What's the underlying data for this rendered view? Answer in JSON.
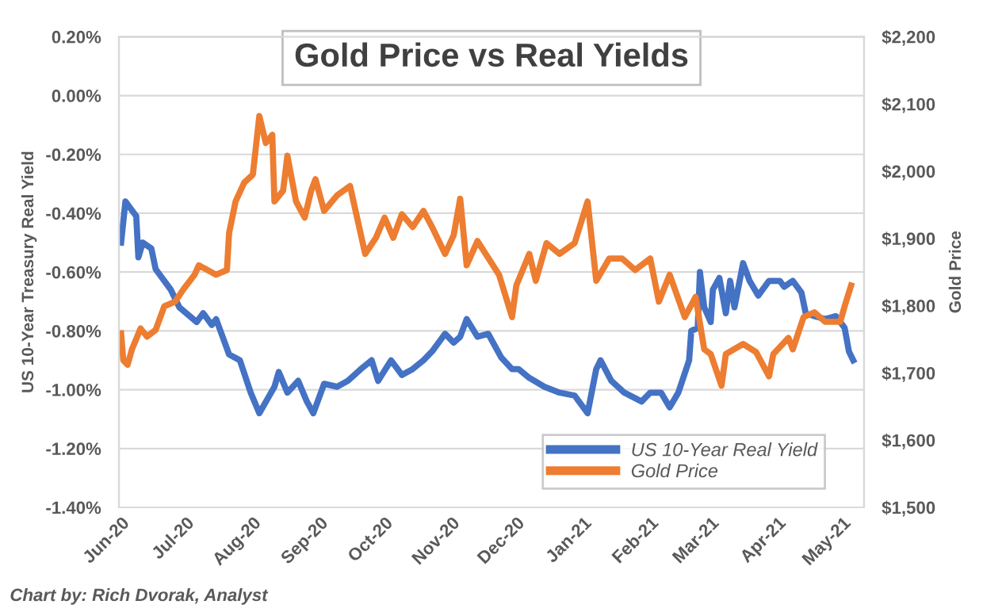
{
  "chart_data": {
    "type": "line",
    "title": "Gold Price vs Real Yields",
    "ylabel": "US 10-Year Treasury Real Yield",
    "y2label": "Gold Price",
    "annotations": [
      "Chart by: Rich Dvorak, Analyst"
    ],
    "series": [
      {
        "name": "US 10-Year Real Yield",
        "color": "#4472c4",
        "axis": "y",
        "x": [
          "2020-06-01",
          "2020-06-03",
          "2020-06-06",
          "2020-06-08",
          "2020-06-09",
          "2020-06-11",
          "2020-06-15",
          "2020-06-17",
          "2020-06-24",
          "2020-06-28",
          "2020-07-06",
          "2020-07-09",
          "2020-07-13",
          "2020-07-15",
          "2020-07-21",
          "2020-07-26",
          "2020-07-31",
          "2020-08-04",
          "2020-08-11",
          "2020-08-13",
          "2020-08-17",
          "2020-08-22",
          "2020-08-26",
          "2020-08-29",
          "2020-09-03",
          "2020-09-09",
          "2020-09-14",
          "2020-09-20",
          "2020-09-25",
          "2020-09-28",
          "2020-10-04",
          "2020-10-09",
          "2020-10-14",
          "2020-10-19",
          "2020-10-23",
          "2020-10-29",
          "2020-11-02",
          "2020-11-05",
          "2020-11-08",
          "2020-11-13",
          "2020-11-18",
          "2020-11-24",
          "2020-11-29",
          "2020-12-02",
          "2020-12-07",
          "2020-12-14",
          "2020-12-21",
          "2020-12-28",
          "2021-01-03",
          "2021-01-07",
          "2021-01-09",
          "2021-01-14",
          "2021-01-20",
          "2021-01-28",
          "2021-02-01",
          "2021-02-06",
          "2021-02-10",
          "2021-02-14",
          "2021-02-19",
          "2021-02-20",
          "2021-02-23",
          "2021-02-24",
          "2021-02-26",
          "2021-03-01",
          "2021-03-02",
          "2021-03-05",
          "2021-03-08",
          "2021-03-10",
          "2021-03-12",
          "2021-03-16",
          "2021-03-19",
          "2021-03-23",
          "2021-03-28",
          "2021-04-02",
          "2021-04-04",
          "2021-04-08",
          "2021-04-12",
          "2021-04-14",
          "2021-04-18",
          "2021-04-23",
          "2021-04-28",
          "2021-05-02",
          "2021-05-04",
          "2021-05-06"
        ],
        "values": [
          -0.5,
          -0.36,
          -0.39,
          -0.41,
          -0.55,
          -0.5,
          -0.52,
          -0.59,
          -0.66,
          -0.72,
          -0.77,
          -0.74,
          -0.78,
          -0.76,
          -0.88,
          -0.9,
          -1.01,
          -1.08,
          -0.99,
          -0.94,
          -1.01,
          -0.97,
          -1.04,
          -1.08,
          -0.98,
          -0.99,
          -0.97,
          -0.93,
          -0.9,
          -0.97,
          -0.9,
          -0.95,
          -0.93,
          -0.9,
          -0.87,
          -0.81,
          -0.84,
          -0.82,
          -0.76,
          -0.82,
          -0.81,
          -0.89,
          -0.93,
          -0.93,
          -0.96,
          -0.99,
          -1.01,
          -1.02,
          -1.08,
          -0.93,
          -0.9,
          -0.97,
          -1.01,
          -1.04,
          -1.01,
          -1.01,
          -1.06,
          -1.01,
          -0.9,
          -0.8,
          -0.79,
          -0.6,
          -0.72,
          -0.77,
          -0.66,
          -0.62,
          -0.74,
          -0.63,
          -0.72,
          -0.57,
          -0.63,
          -0.68,
          -0.63,
          -0.63,
          -0.65,
          -0.63,
          -0.67,
          -0.74,
          -0.75,
          -0.76,
          -0.75,
          -0.79,
          -0.87,
          -0.9
        ]
      },
      {
        "name": "Gold Price",
        "color": "#ed7d31",
        "axis": "y2",
        "x": [
          "2020-06-01",
          "2020-06-02",
          "2020-06-04",
          "2020-06-06",
          "2020-06-10",
          "2020-06-13",
          "2020-06-17",
          "2020-06-21",
          "2020-06-26",
          "2020-06-30",
          "2020-07-05",
          "2020-07-07",
          "2020-07-11",
          "2020-07-15",
          "2020-07-20",
          "2020-07-21",
          "2020-07-24",
          "2020-07-28",
          "2020-08-01",
          "2020-08-04",
          "2020-08-07",
          "2020-08-10",
          "2020-08-11",
          "2020-08-15",
          "2020-08-17",
          "2020-08-21",
          "2020-08-25",
          "2020-08-28",
          "2020-08-30",
          "2020-09-03",
          "2020-09-09",
          "2020-09-15",
          "2020-09-22",
          "2020-09-27",
          "2020-10-01",
          "2020-10-05",
          "2020-10-09",
          "2020-10-14",
          "2020-10-19",
          "2020-10-23",
          "2020-10-29",
          "2020-11-02",
          "2020-11-05",
          "2020-11-08",
          "2020-11-13",
          "2020-11-23",
          "2020-11-29",
          "2020-12-01",
          "2020-12-07",
          "2020-12-10",
          "2020-12-15",
          "2020-12-21",
          "2020-12-28",
          "2021-01-03",
          "2021-01-07",
          "2021-01-13",
          "2021-01-19",
          "2021-01-25",
          "2021-02-01",
          "2021-02-05",
          "2021-02-10",
          "2021-02-17",
          "2021-02-22",
          "2021-02-26",
          "2021-03-01",
          "2021-03-06",
          "2021-03-08",
          "2021-03-16",
          "2021-03-22",
          "2021-03-28",
          "2021-03-30",
          "2021-04-06",
          "2021-04-08",
          "2021-04-13",
          "2021-04-18",
          "2021-04-23",
          "2021-04-30",
          "2021-05-02",
          "2021-05-05"
        ],
        "values": [
          1759,
          1719,
          1712,
          1735,
          1766,
          1754,
          1764,
          1799,
          1806,
          1825,
          1846,
          1860,
          1853,
          1846,
          1853,
          1908,
          1955,
          1983,
          1995,
          2082,
          2042,
          2054,
          1955,
          1971,
          2023,
          1955,
          1931,
          1971,
          1988,
          1941,
          1964,
          1978,
          1877,
          1901,
          1931,
          1901,
          1936,
          1917,
          1941,
          1917,
          1877,
          1905,
          1959,
          1860,
          1896,
          1846,
          1783,
          1830,
          1877,
          1837,
          1893,
          1877,
          1893,
          1955,
          1837,
          1870,
          1870,
          1853,
          1870,
          1806,
          1846,
          1783,
          1813,
          1735,
          1728,
          1681,
          1728,
          1743,
          1731,
          1695,
          1728,
          1752,
          1735,
          1783,
          1790,
          1776,
          1776,
          1799,
          1830
        ]
      }
    ],
    "xlim": [
      "2020-05-31",
      "2021-05-11"
    ],
    "xticks": [
      {
        "value": "2020-06-01",
        "label": "Jun-20"
      },
      {
        "value": "2020-07-01",
        "label": "Jul-20"
      },
      {
        "value": "2020-08-01",
        "label": "Aug-20"
      },
      {
        "value": "2020-09-01",
        "label": "Sep-20"
      },
      {
        "value": "2020-10-01",
        "label": "Oct-20"
      },
      {
        "value": "2020-11-01",
        "label": "Nov-20"
      },
      {
        "value": "2020-12-01",
        "label": "Dec-20"
      },
      {
        "value": "2021-01-01",
        "label": "Jan-21"
      },
      {
        "value": "2021-02-01",
        "label": "Feb-21"
      },
      {
        "value": "2021-03-01",
        "label": "Mar-21"
      },
      {
        "value": "2021-04-01",
        "label": "Apr-21"
      },
      {
        "value": "2021-05-01",
        "label": "May-21"
      }
    ],
    "ylim": [
      -1.4,
      0.2
    ],
    "yticks": [
      {
        "value": 0.2,
        "label": "0.20%"
      },
      {
        "value": 0,
        "label": "0.00%"
      },
      {
        "value": -0.2,
        "label": "-0.20%"
      },
      {
        "value": -0.4,
        "label": "-0.40%"
      },
      {
        "value": -0.6,
        "label": "-0.60%"
      },
      {
        "value": -0.8,
        "label": "-0.80%"
      },
      {
        "value": -1.0,
        "label": "-1.00%"
      },
      {
        "value": -1.2,
        "label": "-1.20%"
      },
      {
        "value": -1.4,
        "label": "-1.40%"
      }
    ],
    "y2lim": [
      1500,
      2200
    ],
    "y2ticks": [
      {
        "value": 1500,
        "label": "$1,500"
      },
      {
        "value": 1600,
        "label": "$1,600"
      },
      {
        "value": 1700,
        "label": "$1,700"
      },
      {
        "value": 1800,
        "label": "$1,800"
      },
      {
        "value": 1900,
        "label": "$1,900"
      },
      {
        "value": 2000,
        "label": "$2,000"
      },
      {
        "value": 2100,
        "label": "$2,100"
      },
      {
        "value": 2200,
        "label": "$2,200"
      }
    ],
    "grid": "y",
    "legend": "bottom right",
    "line_style": "solid",
    "marker": "none"
  }
}
